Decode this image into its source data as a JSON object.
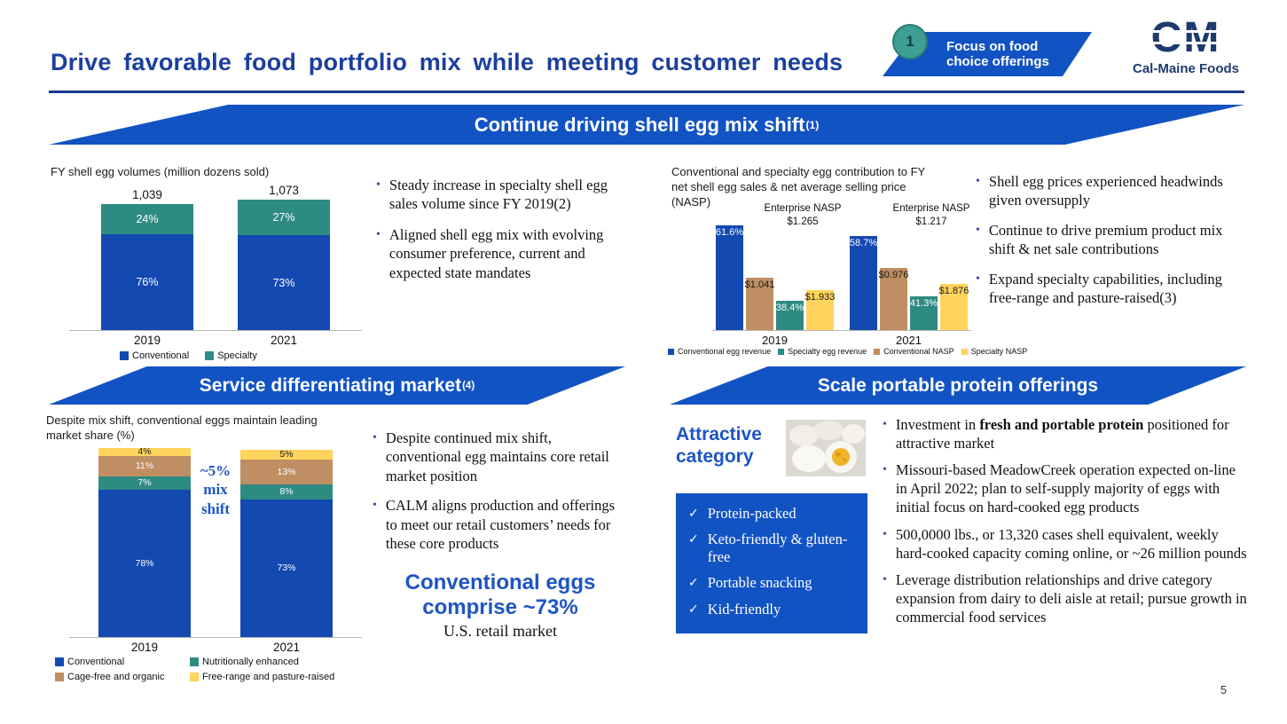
{
  "colors": {
    "blue": "#1349b0",
    "banner_blue": "#1253c4",
    "teal": "#2e8b82",
    "tan": "#bf8e63",
    "yellow": "#ffd45c",
    "title_blue": "#1c3f9e",
    "accent_blue": "#1d55c4",
    "circle_teal": "#3f9e92",
    "logo_navy": "#1e3a6e"
  },
  "header": {
    "title": "Drive favorable food portfolio mix while meeting customer needs",
    "focus_badge": {
      "number": "1",
      "label": "Focus on food choice offerings"
    },
    "logo": {
      "mark": "CM",
      "name": "Cal-Maine Foods"
    }
  },
  "banners": {
    "top": {
      "label": "Continue driving shell egg mix shift",
      "sup": "(1)"
    },
    "service": {
      "label": "Service differentiating market",
      "sup": "(4)"
    },
    "protein": {
      "label": "Scale portable protein offerings"
    }
  },
  "chart_data": [
    {
      "id": "fy-shell-egg-volumes",
      "type": "bar",
      "stacked": true,
      "title": "FY shell egg volumes (million dozens sold)",
      "categories": [
        "2019",
        "2021"
      ],
      "totals": [
        1039,
        1073
      ],
      "totals_label": [
        "1,039",
        "1,073"
      ],
      "unit": "%",
      "series": [
        {
          "name": "Specialty",
          "color": "teal",
          "values": [
            24,
            27
          ]
        },
        {
          "name": "Conventional",
          "color": "blue",
          "values": [
            76,
            73
          ]
        }
      ],
      "legend": [
        {
          "label": "Conventional",
          "color": "blue"
        },
        {
          "label": "Specialty",
          "color": "teal"
        }
      ]
    },
    {
      "id": "nasp-contribution",
      "type": "bar",
      "title": "Conventional and specialty egg contribution to FY net shell egg sales & net average selling price (NASP)",
      "categories": [
        "2019",
        "2021"
      ],
      "groups": [
        {
          "category": "2019",
          "enterprise_nasp": "Enterprise NASP\n$1.265",
          "bars": [
            {
              "series": "Conventional egg revenue",
              "label": "61.6%",
              "color": "blue",
              "h": 118,
              "text": "light"
            },
            {
              "series": "Conventional NASP",
              "label": "$1.041",
              "color": "tan",
              "h": 59,
              "text": "dark"
            },
            {
              "series": "Specialty egg revenue",
              "label": "38.4%",
              "color": "teal",
              "h": 33,
              "text": "light"
            },
            {
              "series": "Specialty NASP",
              "label": "$1.933",
              "color": "yellow",
              "h": 45,
              "text": "dark"
            }
          ]
        },
        {
          "category": "2021",
          "enterprise_nasp": "Enterprise NASP\n$1.217",
          "bars": [
            {
              "series": "Conventional egg revenue",
              "label": "58.7%",
              "color": "blue",
              "h": 106,
              "text": "light"
            },
            {
              "series": "Conventional NASP",
              "label": "$0.976",
              "color": "tan",
              "h": 70,
              "text": "dark"
            },
            {
              "series": "Specialty egg revenue",
              "label": "41.3%",
              "color": "teal",
              "h": 38,
              "text": "light"
            },
            {
              "series": "Specialty NASP",
              "label": "$1.876",
              "color": "yellow",
              "h": 52,
              "text": "dark"
            }
          ]
        }
      ],
      "legend": [
        {
          "label": "Conventional egg revenue",
          "color": "blue"
        },
        {
          "label": "Specialty egg revenue",
          "color": "teal"
        },
        {
          "label": "Conventional NASP",
          "color": "tan"
        },
        {
          "label": "Specialty NASP",
          "color": "yellow"
        }
      ]
    },
    {
      "id": "retail-market-share",
      "type": "bar",
      "stacked": true,
      "title": "Despite mix shift, conventional eggs maintain leading market share (%)",
      "categories": [
        "2019",
        "2021"
      ],
      "unit": "%",
      "series": [
        {
          "name": "Free-range and pasture-raised",
          "color": "yellow",
          "values": [
            4,
            5
          ],
          "text": "dark"
        },
        {
          "name": "Cage-free and organic",
          "color": "tan",
          "values": [
            11,
            13
          ],
          "text": "light"
        },
        {
          "name": "Nutritionally enhanced",
          "color": "teal",
          "values": [
            7,
            8
          ],
          "text": "light"
        },
        {
          "name": "Conventional",
          "color": "blue",
          "values": [
            78,
            73
          ],
          "text": "light"
        }
      ],
      "legend": [
        {
          "label": "Conventional",
          "color": "blue"
        },
        {
          "label": "Nutritionally enhanced",
          "color": "teal"
        },
        {
          "label": "Cage-free and organic",
          "color": "tan"
        },
        {
          "label": "Free-range and pasture-raised",
          "color": "yellow"
        }
      ],
      "annotation": "~5%\nmix\nshift"
    }
  ],
  "sections": {
    "egg_mix": {
      "bullets": [
        "Steady increase in specialty shell egg sales volume since FY 2019(2)",
        "Aligned shell egg mix with evolving consumer preference, current and expected state mandates"
      ]
    },
    "nasp": {
      "bullets": [
        "Shell egg prices experienced headwinds given oversupply",
        "Continue to drive premium product mix shift & net sale contributions",
        "Expand specialty capabilities, including free-range and pasture-raised(3)"
      ]
    },
    "service": {
      "bullets": [
        "Despite continued mix shift, conventional egg maintains core retail market position",
        "CALM aligns production and offerings to meet our retail customers’ needs for these core products"
      ],
      "highlight": {
        "main": "Conventional eggs\ncomprise ~73%",
        "sub": "U.S. retail market"
      }
    },
    "protein": {
      "attractive_label": "Attractive category",
      "checklist": [
        "Protein-packed",
        "Keto-friendly & gluten-free",
        "Portable snacking",
        "Kid-friendly"
      ],
      "bullets": [
        {
          "pre": "Investment in ",
          "bold": "fresh and portable protein",
          "post": " positioned for attractive market"
        },
        {
          "text": "Missouri-based MeadowCreek operation expected on-line in April 2022; plan to self-supply majority of eggs with initial focus on hard-cooked egg products"
        },
        {
          "text": "500,0000 lbs., or 13,320 cases shell equivalent, weekly hard-cooked capacity coming online, or ~26 million pounds"
        },
        {
          "text": "Leverage distribution relationships and drive category expansion from dairy to deli aisle at retail; pursue growth in commercial food services"
        }
      ]
    }
  },
  "page_number": "5"
}
